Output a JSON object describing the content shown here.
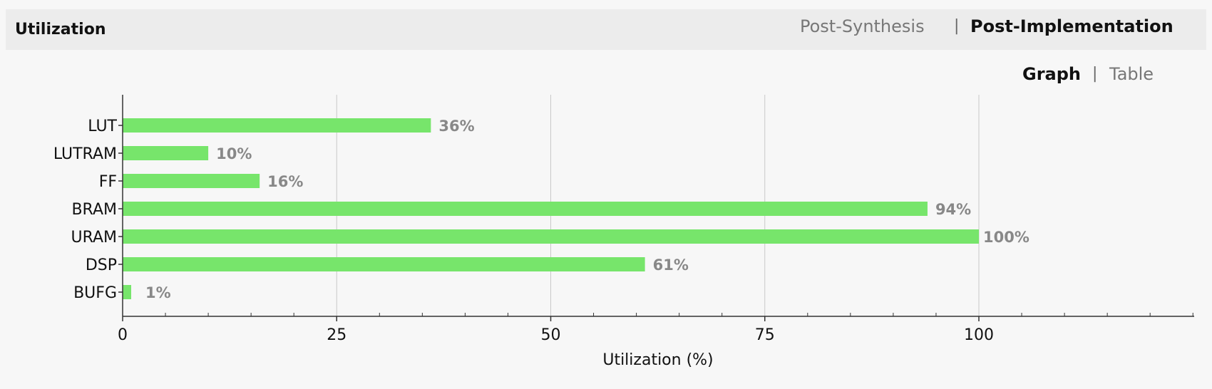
{
  "header": {
    "title": "Utilization",
    "tabs": [
      {
        "label": "Post-Synthesis",
        "active": false
      },
      {
        "label": "Post-Implementation",
        "active": true
      }
    ],
    "separator": "|"
  },
  "view": {
    "graph_label": "Graph",
    "table_label": "Table",
    "selected": "Graph",
    "separator": "|"
  },
  "colors": {
    "bar": "#77e56b",
    "value_label": "#888888",
    "grid": "#c8c8c8",
    "axis": "#333333"
  },
  "chart_data": {
    "type": "bar",
    "orientation": "horizontal",
    "categories": [
      "LUT",
      "LUTRAM",
      "FF",
      "BRAM",
      "URAM",
      "DSP",
      "BUFG"
    ],
    "values": [
      36,
      10,
      16,
      94,
      100,
      61,
      1
    ],
    "value_labels": [
      "36%",
      "10%",
      "16%",
      "94%",
      "100%",
      "61%",
      "1%"
    ],
    "xlabel": "Utilization (%)",
    "xlim": [
      0,
      125
    ],
    "xticks": [
      0,
      25,
      50,
      75,
      100
    ],
    "grid": true
  }
}
